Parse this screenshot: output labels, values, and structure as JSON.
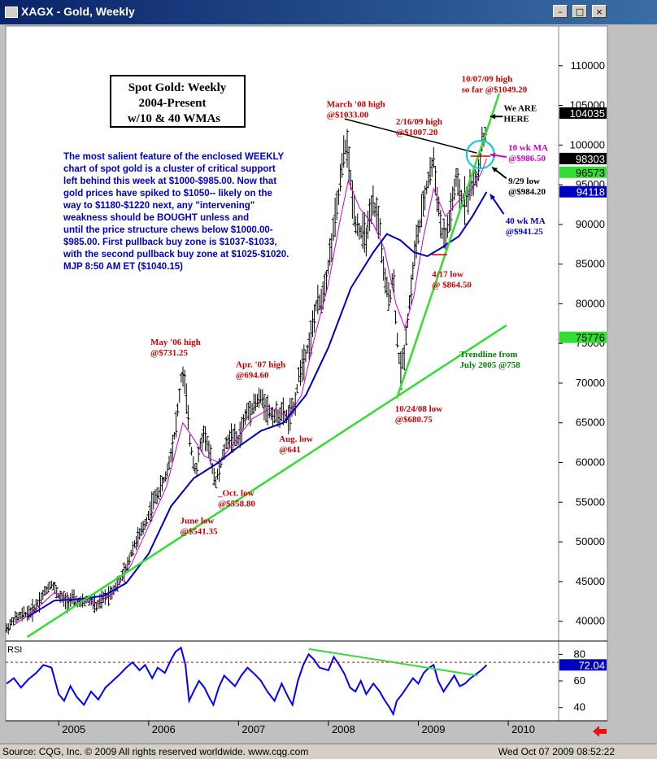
{
  "window": {
    "title": "XAGX - Gold, Weekly"
  },
  "status": {
    "source": "Source: CQG, Inc. © 2009 All rights reserved worldwide.  www.cqg.com",
    "timestamp": "Wed Oct 07 2009 08:52:22"
  },
  "colors": {
    "bar": "#000000",
    "ma10": "#d000d0",
    "ma40": "#0000c0",
    "trend": "#33dd33",
    "annotation_red": "#cc0000",
    "text_blue": "#0000cc",
    "rsi_line": "#0000ff",
    "rsi_ref": "#d00000"
  },
  "chart_data": [
    {
      "type": "bar",
      "description_box": [
        "Spot Gold: Weekly",
        "2004-Present",
        "w/10 & 40 WMAs"
      ],
      "ylim": [
        37500,
        115000
      ],
      "y_ticks": [
        "110000",
        "105000",
        "100000",
        "95000",
        "90000",
        "85000",
        "80000",
        "75000",
        "70000",
        "65000",
        "60000",
        "55000",
        "50000",
        "45000",
        "40000"
      ],
      "y_tick_values": [
        110000,
        105000,
        100000,
        95000,
        90000,
        85000,
        80000,
        75000,
        70000,
        65000,
        60000,
        55000,
        50000,
        45000,
        40000
      ],
      "x_ticks": [
        "2005",
        "2006",
        "2007",
        "2008",
        "2009",
        "2010"
      ],
      "x_tick_dates": [
        2005.0,
        2006.0,
        2007.0,
        2008.0,
        2009.0,
        2010.0
      ],
      "xlim": [
        2004.41,
        2010.56
      ],
      "price_labels": [
        {
          "text": "104035",
          "value": 104035,
          "fill": "#000000",
          "color": "#ffffff"
        },
        {
          "text": "98303",
          "value": 98303,
          "fill": "#000000",
          "color": "#ffffff"
        },
        {
          "text": "96573",
          "value": 96573,
          "fill": "#33dd33",
          "color": "#000000"
        },
        {
          "text": "94118",
          "value": 94118,
          "fill": "#0000c0",
          "color": "#ffffff"
        },
        {
          "text": "75776",
          "value": 75776,
          "fill": "#33dd33",
          "color": "#000000"
        }
      ],
      "price_path": [
        [
          2004.42,
          39000
        ],
        [
          2004.5,
          40200
        ],
        [
          2004.6,
          40800
        ],
        [
          2004.7,
          41200
        ],
        [
          2004.78,
          42500
        ],
        [
          2004.85,
          43800
        ],
        [
          2004.92,
          44800
        ],
        [
          2005.0,
          43200
        ],
        [
          2005.08,
          42500
        ],
        [
          2005.16,
          42800
        ],
        [
          2005.24,
          42200
        ],
        [
          2005.33,
          42800
        ],
        [
          2005.42,
          41800
        ],
        [
          2005.5,
          42900
        ],
        [
          2005.58,
          43600
        ],
        [
          2005.66,
          44800
        ],
        [
          2005.75,
          46500
        ],
        [
          2005.82,
          49200
        ],
        [
          2005.9,
          50800
        ],
        [
          2005.98,
          52800
        ],
        [
          2006.05,
          55000
        ],
        [
          2006.12,
          56500
        ],
        [
          2006.2,
          58500
        ],
        [
          2006.28,
          63000
        ],
        [
          2006.33,
          67000
        ],
        [
          2006.37,
          71500
        ],
        [
          2006.41,
          69500
        ],
        [
          2006.45,
          63500
        ],
        [
          2006.49,
          60500
        ],
        [
          2006.53,
          58800
        ],
        [
          2006.57,
          62000
        ],
        [
          2006.62,
          63800
        ],
        [
          2006.66,
          62000
        ],
        [
          2006.7,
          60000
        ],
        [
          2006.74,
          57500
        ],
        [
          2006.78,
          58800
        ],
        [
          2006.83,
          61000
        ],
        [
          2006.88,
          62800
        ],
        [
          2006.93,
          63200
        ],
        [
          2007.0,
          62800
        ],
        [
          2007.08,
          66000
        ],
        [
          2007.16,
          67200
        ],
        [
          2007.25,
          68200
        ],
        [
          2007.33,
          66500
        ],
        [
          2007.41,
          65800
        ],
        [
          2007.49,
          66200
        ],
        [
          2007.55,
          65500
        ],
        [
          2007.62,
          67000
        ],
        [
          2007.68,
          71500
        ],
        [
          2007.74,
          73500
        ],
        [
          2007.8,
          75500
        ],
        [
          2007.86,
          79500
        ],
        [
          2007.92,
          80500
        ],
        [
          2007.98,
          83500
        ],
        [
          2008.04,
          88000
        ],
        [
          2008.1,
          92500
        ],
        [
          2008.16,
          98000
        ],
        [
          2008.2,
          100500
        ],
        [
          2008.25,
          95000
        ],
        [
          2008.3,
          90500
        ],
        [
          2008.36,
          89000
        ],
        [
          2008.42,
          88500
        ],
        [
          2008.5,
          92500
        ],
        [
          2008.57,
          90000
        ],
        [
          2008.62,
          83000
        ],
        [
          2008.68,
          80500
        ],
        [
          2008.72,
          84000
        ],
        [
          2008.76,
          76000
        ],
        [
          2008.8,
          71500
        ],
        [
          2008.84,
          73500
        ],
        [
          2008.88,
          78000
        ],
        [
          2008.93,
          83000
        ],
        [
          2008.97,
          87500
        ],
        [
          2009.02,
          90000
        ],
        [
          2009.08,
          94000
        ],
        [
          2009.13,
          96500
        ],
        [
          2009.17,
          98000
        ],
        [
          2009.21,
          93500
        ],
        [
          2009.26,
          89000
        ],
        [
          2009.3,
          88000
        ],
        [
          2009.36,
          91500
        ],
        [
          2009.42,
          95500
        ],
        [
          2009.48,
          93000
        ],
        [
          2009.54,
          93500
        ],
        [
          2009.6,
          95000
        ],
        [
          2009.66,
          96000
        ],
        [
          2009.7,
          99500
        ],
        [
          2009.72,
          101000
        ],
        [
          2009.74,
          100000
        ],
        [
          2009.76,
          104000
        ]
      ],
      "ma10_path": [
        [
          2004.5,
          39500
        ],
        [
          2004.75,
          41500
        ],
        [
          2004.95,
          43600
        ],
        [
          2005.15,
          42800
        ],
        [
          2005.4,
          42200
        ],
        [
          2005.6,
          43500
        ],
        [
          2005.8,
          47000
        ],
        [
          2006.0,
          52000
        ],
        [
          2006.2,
          57000
        ],
        [
          2006.38,
          65000
        ],
        [
          2006.5,
          63000
        ],
        [
          2006.62,
          60800
        ],
        [
          2006.78,
          60000
        ],
        [
          2006.95,
          62500
        ],
        [
          2007.15,
          65500
        ],
        [
          2007.35,
          66800
        ],
        [
          2007.55,
          65800
        ],
        [
          2007.7,
          68500
        ],
        [
          2007.85,
          76000
        ],
        [
          2008.0,
          82500
        ],
        [
          2008.12,
          90000
        ],
        [
          2008.22,
          95500
        ],
        [
          2008.35,
          92000
        ],
        [
          2008.5,
          90000
        ],
        [
          2008.62,
          87000
        ],
        [
          2008.75,
          80000
        ],
        [
          2008.85,
          77000
        ],
        [
          2008.95,
          81000
        ],
        [
          2009.05,
          88000
        ],
        [
          2009.17,
          94500
        ],
        [
          2009.3,
          91000
        ],
        [
          2009.45,
          93000
        ],
        [
          2009.6,
          94500
        ],
        [
          2009.7,
          96500
        ],
        [
          2009.76,
          98300
        ]
      ],
      "ma40_path": [
        [
          2004.65,
          40500
        ],
        [
          2004.95,
          42600
        ],
        [
          2005.25,
          42800
        ],
        [
          2005.5,
          43200
        ],
        [
          2005.75,
          44800
        ],
        [
          2006.0,
          48500
        ],
        [
          2006.25,
          54500
        ],
        [
          2006.5,
          58000
        ],
        [
          2006.75,
          59800
        ],
        [
          2007.0,
          62000
        ],
        [
          2007.25,
          64000
        ],
        [
          2007.5,
          65000
        ],
        [
          2007.75,
          68500
        ],
        [
          2008.0,
          74500
        ],
        [
          2008.25,
          82000
        ],
        [
          2008.5,
          86500
        ],
        [
          2008.65,
          88800
        ],
        [
          2008.8,
          88000
        ],
        [
          2008.95,
          86500
        ],
        [
          2009.1,
          86000
        ],
        [
          2009.25,
          87000
        ],
        [
          2009.45,
          88500
        ],
        [
          2009.6,
          91000
        ],
        [
          2009.76,
          94100
        ]
      ],
      "trendlines": [
        {
          "points": [
            [
              2004.65,
              38000
            ],
            [
              2009.98,
              77300
            ]
          ]
        },
        {
          "points": [
            [
              2008.76,
              68075
            ],
            [
              2009.9,
              106500
            ]
          ]
        },
        {
          "points": [
            [
              2008.18,
              103300
            ],
            [
              2009.65,
              99000
            ]
          ]
        }
      ],
      "annotations": [
        {
          "lines": [
            "March '08 high",
            "@$1033.00"
          ],
          "color": "#cc0000",
          "x": 2007.98,
          "y": 104800
        },
        {
          "lines": [
            "2/16/09 high",
            "@$1007.20"
          ],
          "color": "#cc0000",
          "x": 2008.75,
          "y": 102600
        },
        {
          "lines": [
            "10/07/09 high",
            "so far @$1049.20"
          ],
          "color": "#cc0000",
          "x": 2009.48,
          "y": 108000
        },
        {
          "lines": [
            "We ARE",
            "HERE"
          ],
          "color": "#000000",
          "x": 2009.95,
          "y": 104300
        },
        {
          "lines": [
            "10 wk MA",
            "@$986.50"
          ],
          "color": "#d000d0",
          "x": 2010.0,
          "y": 99300
        },
        {
          "lines": [
            "9/29 low",
            "@$984.20"
          ],
          "color": "#000000",
          "x": 2010.0,
          "y": 95100
        },
        {
          "lines": [
            "40 wk MA",
            "@$941.25"
          ],
          "color": "#0000cc",
          "x": 2009.97,
          "y": 90100
        },
        {
          "lines": [
            "4/17 low",
            "@ $864.50"
          ],
          "color": "#cc0000",
          "x": 2009.15,
          "y": 83400
        },
        {
          "lines": [
            "May '06 high",
            "@$731.25"
          ],
          "color": "#cc0000",
          "x": 2006.02,
          "y": 74800
        },
        {
          "lines": [
            "Apr. '07 high",
            "@694.60"
          ],
          "color": "#cc0000",
          "x": 2006.97,
          "y": 72000
        },
        {
          "lines": [
            "Trendline from",
            "July 2005 @758"
          ],
          "color": "#008800",
          "x": 2009.46,
          "y": 73300
        },
        {
          "lines": [
            "10/24/08 low",
            "@$680.75"
          ],
          "color": "#cc0000",
          "x": 2008.74,
          "y": 66400
        },
        {
          "lines": [
            "Aug. low",
            "@641"
          ],
          "color": "#cc0000",
          "x": 2007.45,
          "y": 62600
        },
        {
          "lines": [
            "_Oct. low",
            "@$558.80"
          ],
          "color": "#cc0000",
          "x": 2006.77,
          "y": 55800
        },
        {
          "lines": [
            "June low",
            "@$541.35"
          ],
          "color": "#cc0000",
          "x": 2006.35,
          "y": 52300
        }
      ],
      "commentary": [
        "The most salient feature of the enclosed WEEKLY",
        "chart of spot gold is a cluster of critical support",
        "left behind this week at $1000-$985.00. Now that",
        "gold prices have spiked to $1050-- likely on the",
        "way to $1180-$1220 next, any \"intervening\"",
        "weakness should be BOUGHT unless and",
        "until the price structure chews below $1000.00-",
        "$985.00.  First pullback buy zone is $1037-$1033,",
        "with the second pullback buy zone at $1025-$1020.",
        "MJP  8:50 AM ET  ($1040.15)"
      ]
    },
    {
      "type": "line",
      "panel_label": "RSI",
      "ylim": [
        30,
        90
      ],
      "y_ticks": [
        "80",
        "60",
        "40"
      ],
      "y_tick_values": [
        80,
        60,
        40
      ],
      "reference_level": 74,
      "last_value_label": "72.04",
      "last_value": 72.04,
      "values": [
        [
          2004.42,
          58
        ],
        [
          2004.5,
          62
        ],
        [
          2004.58,
          55
        ],
        [
          2004.66,
          61
        ],
        [
          2004.75,
          66
        ],
        [
          2004.83,
          72
        ],
        [
          2004.92,
          70
        ],
        [
          2005.0,
          50
        ],
        [
          2005.06,
          45
        ],
        [
          2005.13,
          56
        ],
        [
          2005.2,
          48
        ],
        [
          2005.28,
          42
        ],
        [
          2005.36,
          52
        ],
        [
          2005.44,
          46
        ],
        [
          2005.52,
          55
        ],
        [
          2005.6,
          60
        ],
        [
          2005.68,
          65
        ],
        [
          2005.75,
          70
        ],
        [
          2005.82,
          74
        ],
        [
          2005.9,
          68
        ],
        [
          2005.96,
          72
        ],
        [
          2006.04,
          62
        ],
        [
          2006.1,
          70
        ],
        [
          2006.18,
          66
        ],
        [
          2006.25,
          76
        ],
        [
          2006.3,
          82
        ],
        [
          2006.36,
          85
        ],
        [
          2006.41,
          72
        ],
        [
          2006.45,
          45
        ],
        [
          2006.5,
          52
        ],
        [
          2006.56,
          60
        ],
        [
          2006.62,
          55
        ],
        [
          2006.67,
          48
        ],
        [
          2006.72,
          42
        ],
        [
          2006.78,
          55
        ],
        [
          2006.84,
          64
        ],
        [
          2006.9,
          60
        ],
        [
          2006.96,
          56
        ],
        [
          2007.03,
          64
        ],
        [
          2007.1,
          70
        ],
        [
          2007.18,
          65
        ],
        [
          2007.25,
          60
        ],
        [
          2007.32,
          52
        ],
        [
          2007.4,
          45
        ],
        [
          2007.48,
          58
        ],
        [
          2007.55,
          48
        ],
        [
          2007.6,
          42
        ],
        [
          2007.66,
          60
        ],
        [
          2007.72,
          72
        ],
        [
          2007.78,
          80
        ],
        [
          2007.84,
          76
        ],
        [
          2007.9,
          70
        ],
        [
          2008.0,
          68
        ],
        [
          2008.06,
          78
        ],
        [
          2008.12,
          72
        ],
        [
          2008.18,
          65
        ],
        [
          2008.24,
          55
        ],
        [
          2008.3,
          52
        ],
        [
          2008.36,
          60
        ],
        [
          2008.42,
          50
        ],
        [
          2008.5,
          58
        ],
        [
          2008.57,
          52
        ],
        [
          2008.62,
          46
        ],
        [
          2008.68,
          40
        ],
        [
          2008.72,
          35
        ],
        [
          2008.76,
          45
        ],
        [
          2008.82,
          50
        ],
        [
          2008.88,
          56
        ],
        [
          2008.94,
          62
        ],
        [
          2009.0,
          58
        ],
        [
          2009.06,
          66
        ],
        [
          2009.12,
          70
        ],
        [
          2009.17,
          72
        ],
        [
          2009.22,
          60
        ],
        [
          2009.28,
          52
        ],
        [
          2009.34,
          58
        ],
        [
          2009.4,
          64
        ],
        [
          2009.46,
          56
        ],
        [
          2009.52,
          58
        ],
        [
          2009.58,
          62
        ],
        [
          2009.64,
          65
        ],
        [
          2009.7,
          68
        ],
        [
          2009.76,
          72
        ]
      ],
      "trendline": [
        [
          2007.78,
          84
        ],
        [
          2009.66,
          64
        ]
      ]
    }
  ]
}
